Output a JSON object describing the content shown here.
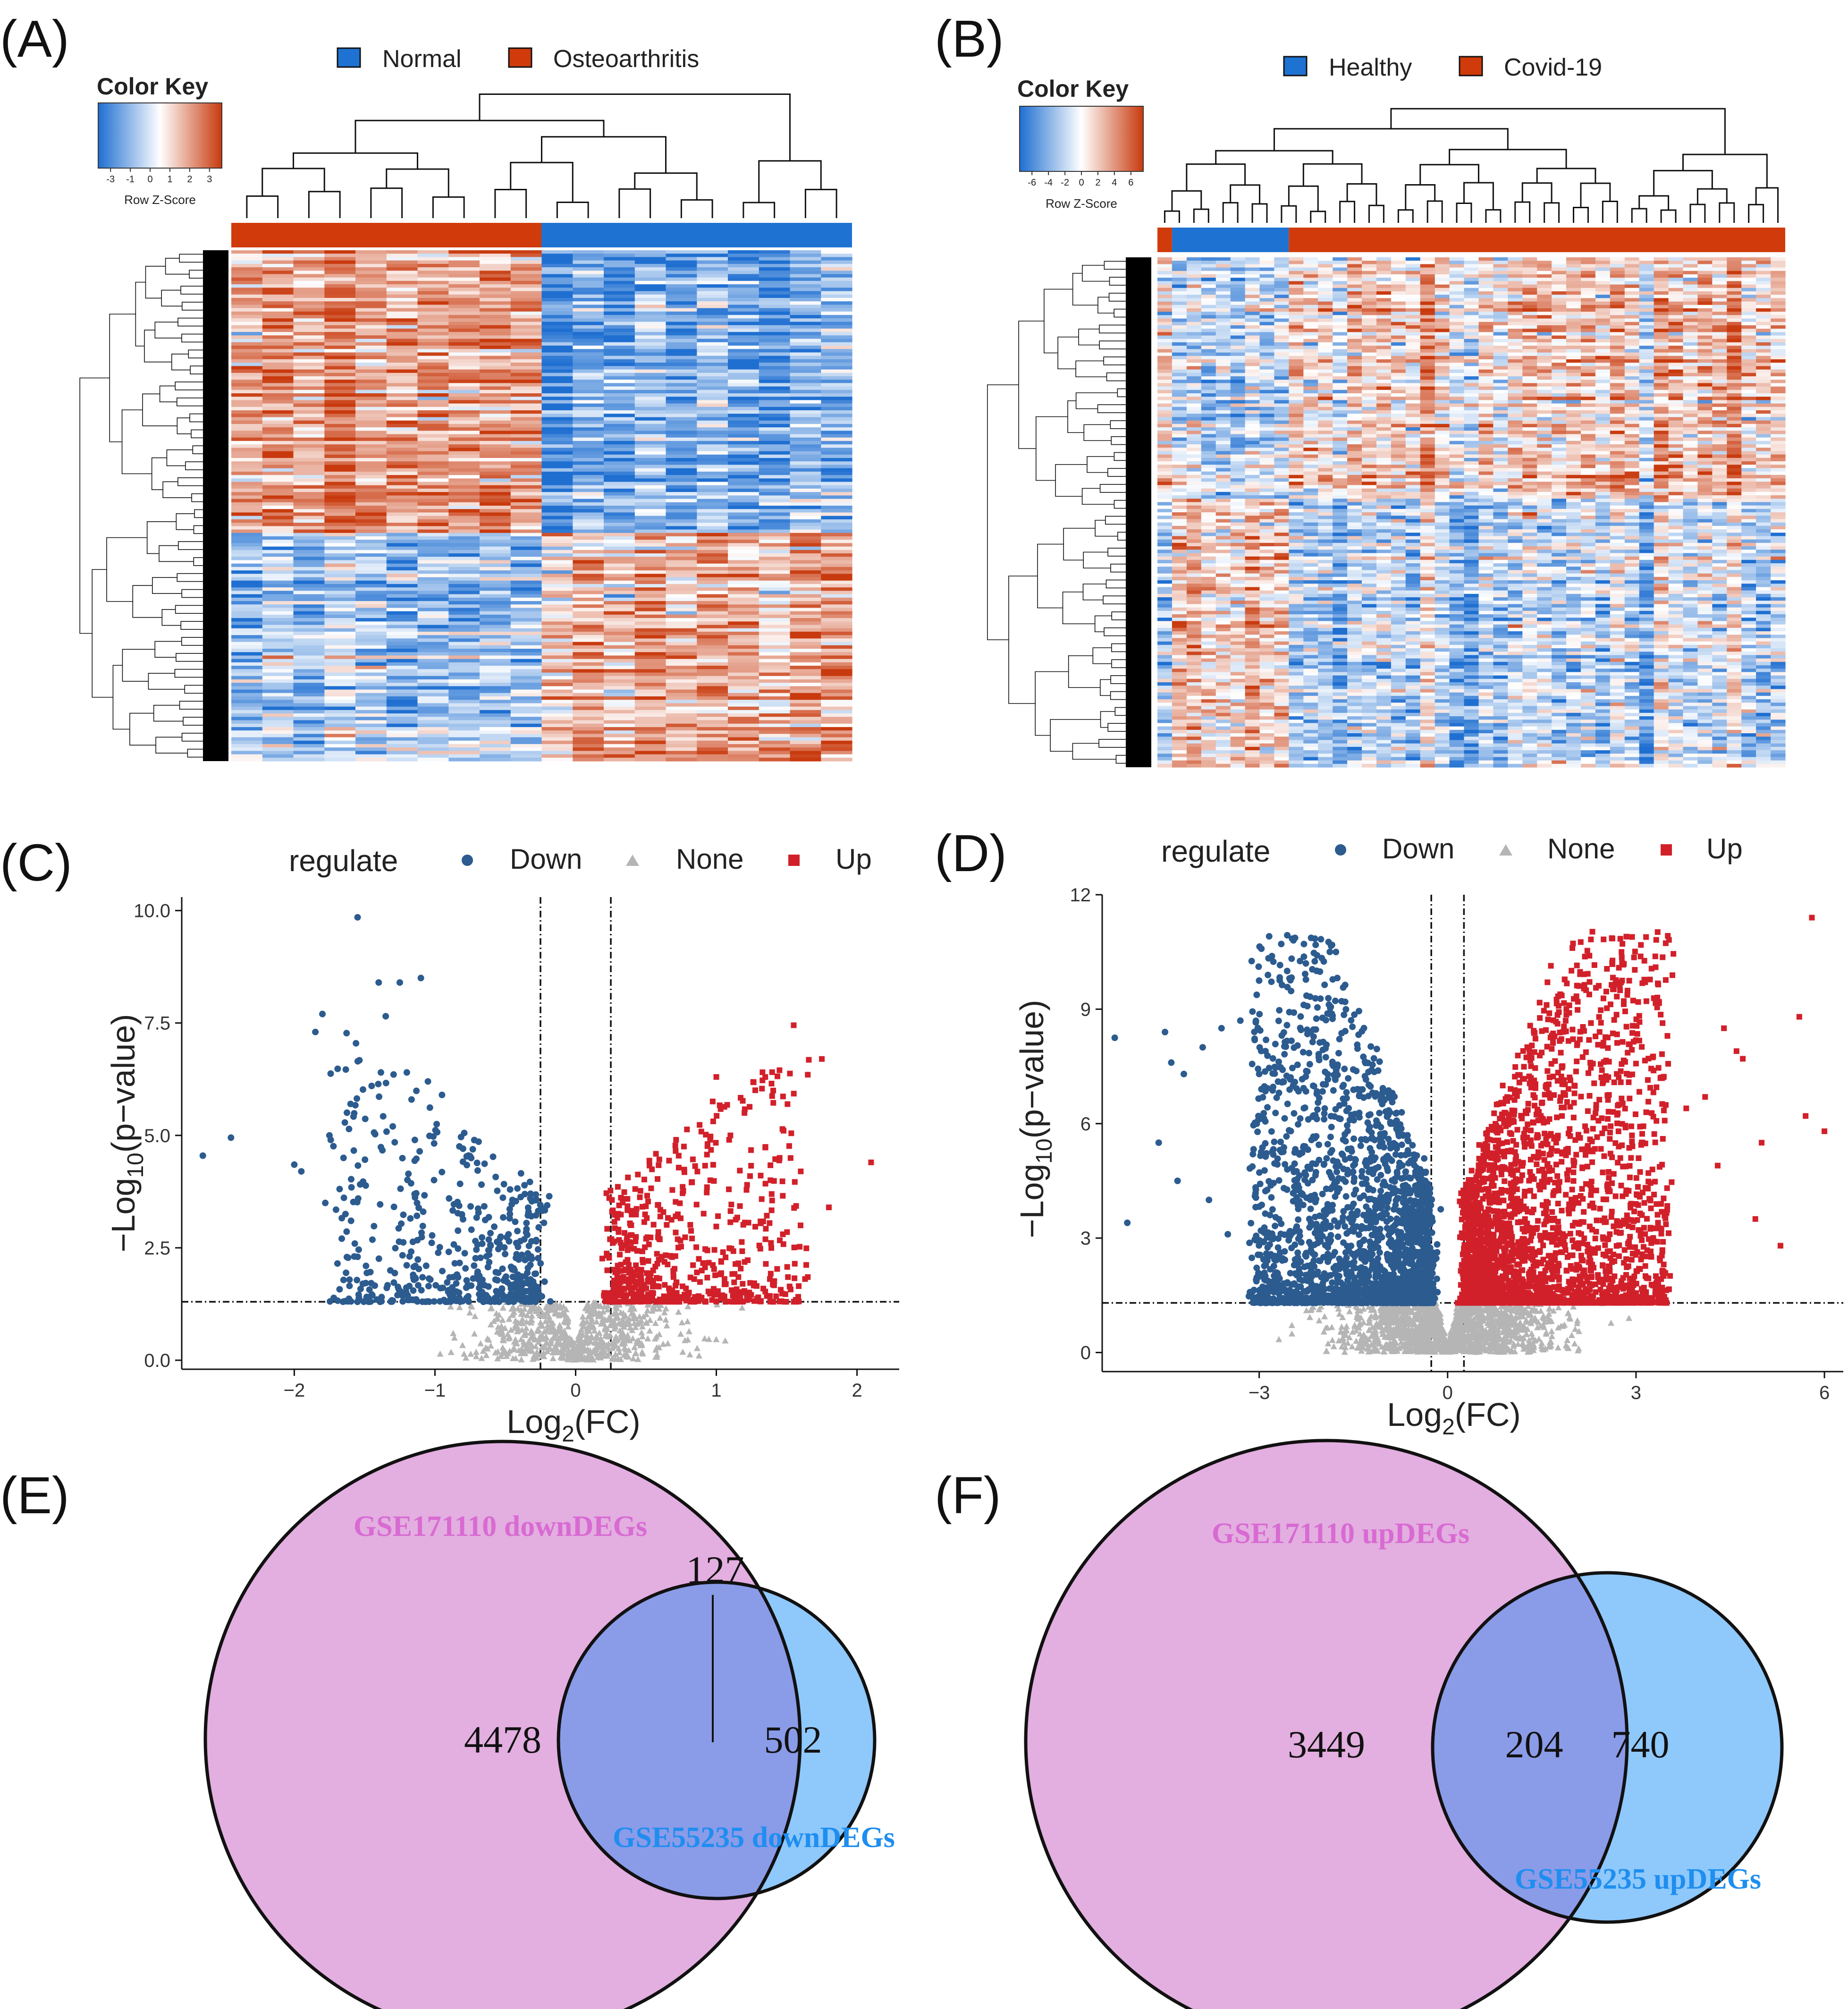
{
  "panels": {
    "A": {
      "label": "(A)"
    },
    "B": {
      "label": "(B)"
    },
    "C": {
      "label": "(C)"
    },
    "D": {
      "label": "(D)"
    },
    "E": {
      "label": "(E)"
    },
    "F": {
      "label": "(F)"
    }
  },
  "colors": {
    "heat_low": "#1f6fd1",
    "heat_mid": "#ffffff",
    "heat_high": "#c83a0e",
    "group_blue": "#1e73d2",
    "group_red": "#d13b0b",
    "down": "#2c5b8f",
    "none": "#b5b5b5",
    "up": "#d2202a",
    "venn_pink": "#e3aee0",
    "venn_blue": "#8fc8fb",
    "venn_overlap": "#8a9be8",
    "venn_pink_text": "#d86ad2",
    "venn_blue_text": "#1e8ef0"
  },
  "chart_data": [
    {
      "panel": "A",
      "type": "heatmap",
      "color_key": {
        "title": "Color Key",
        "sublabel": "Row Z-Score",
        "ticks": [
          "-3",
          "-1",
          "0",
          "1",
          "2",
          "3"
        ]
      },
      "legend": [
        {
          "name": "Normal",
          "color": "#1e73d2"
        },
        {
          "name": "Osteoarthritis",
          "color": "#d13b0b"
        }
      ],
      "groups": [
        {
          "name": "Osteoarthritis",
          "n": 10
        },
        {
          "name": "Normal",
          "n": 10
        }
      ],
      "row_clusters": 2
    },
    {
      "panel": "B",
      "type": "heatmap",
      "color_key": {
        "title": "Color Key",
        "sublabel": "Row Z-Score",
        "ticks": [
          "-6",
          "-4",
          "-2",
          "0",
          "2",
          "4",
          "6"
        ]
      },
      "legend": [
        {
          "name": "Healthy",
          "color": "#1e73d2"
        },
        {
          "name": "Covid-19",
          "color": "#d13b0b"
        }
      ],
      "groups": [
        {
          "name": "Covid-19",
          "n": 1
        },
        {
          "name": "Healthy",
          "n": 8
        },
        {
          "name": "Covid-19",
          "n": 34
        }
      ],
      "row_clusters": 2
    },
    {
      "panel": "C",
      "type": "scatter",
      "xlabel": "Log2(FC)",
      "ylabel": "-Log10(p-value)",
      "xlim": [
        -2.8,
        2.3
      ],
      "ylim": [
        -0.2,
        10.3
      ],
      "xticks": [
        -2,
        -1,
        0,
        1,
        2
      ],
      "yticks": [
        0.0,
        2.5,
        5.0,
        7.5,
        10.0
      ],
      "ytick_labels": [
        "0.0",
        "2.5",
        "5.0",
        "7.5",
        "10.0"
      ],
      "vlines": [
        -0.25,
        0.25
      ],
      "hline": 1.3,
      "legend_title": "regulate",
      "series": [
        {
          "name": "Down",
          "color": "#2c5b8f",
          "marker": "circle",
          "points": [
            [
              -2.65,
              4.55
            ],
            [
              -2.45,
              4.95
            ],
            [
              -2.0,
              4.35
            ],
            [
              -1.95,
              4.2
            ],
            [
              -1.8,
              7.7
            ],
            [
              -1.85,
              7.3
            ],
            [
              -1.55,
              9.85
            ],
            [
              -1.4,
              8.4
            ],
            [
              -1.25,
              8.4
            ],
            [
              -1.1,
              8.5
            ],
            [
              -1.35,
              7.65
            ],
            [
              -1.45,
              6.1
            ],
            [
              -1.6,
              5.7
            ],
            [
              -1.75,
              5.0
            ],
            [
              -1.65,
              4.5
            ],
            [
              -1.55,
              2.3
            ],
            [
              -1.3,
              5.2
            ],
            [
              -1.2,
              6.4
            ],
            [
              -1.05,
              6.2
            ],
            [
              -0.95,
              5.9
            ]
          ]
        },
        {
          "name": "None",
          "color": "#b5b5b5",
          "marker": "triangle"
        },
        {
          "name": "Up",
          "color": "#d2202a",
          "marker": "square",
          "points": [
            [
              1.55,
              7.45
            ],
            [
              1.75,
              6.7
            ],
            [
              1.65,
              6.35
            ],
            [
              2.1,
              4.4
            ],
            [
              1.8,
              3.4
            ],
            [
              1.6,
              4.2
            ],
            [
              1.65,
              1.85
            ],
            [
              1.2,
              5.5
            ],
            [
              1.0,
              6.3
            ],
            [
              1.45,
              4.5
            ],
            [
              1.1,
              5.0
            ]
          ]
        }
      ],
      "dense": {
        "down_n": 520,
        "up_n": 600,
        "none_n": 700,
        "down_x": [
          -1.7,
          -0.28
        ],
        "up_x": [
          0.28,
          1.6
        ],
        "fc_ymax_div": 0.12
      }
    },
    {
      "panel": "D",
      "type": "scatter",
      "xlabel": "Log2(FC)",
      "ylabel": "-Log10(p-value)",
      "xlim": [
        -5.5,
        6.3
      ],
      "ylim": [
        -0.5,
        12
      ],
      "xticks": [
        -3,
        0,
        3,
        6
      ],
      "yticks": [
        0,
        3,
        6,
        9,
        12
      ],
      "ytick_labels": [
        "0",
        "3",
        "6",
        "9",
        "12"
      ],
      "vlines": [
        -0.26,
        0.26
      ],
      "hline": 1.3,
      "legend_title": "regulate",
      "series": [
        {
          "name": "Down",
          "color": "#2c5b8f",
          "marker": "circle",
          "points": [
            [
              -5.3,
              8.25
            ],
            [
              -4.5,
              8.4
            ],
            [
              -4.4,
              7.6
            ],
            [
              -4.2,
              7.3
            ],
            [
              -3.9,
              8.0
            ],
            [
              -3.6,
              8.5
            ],
            [
              -3.3,
              8.7
            ],
            [
              -4.6,
              5.5
            ],
            [
              -5.1,
              3.4
            ],
            [
              -4.3,
              4.5
            ],
            [
              -3.8,
              4.0
            ],
            [
              -3.5,
              3.1
            ],
            [
              -2.9,
              7.9
            ],
            [
              -2.7,
              7.1
            ],
            [
              -3.1,
              5.2
            ]
          ]
        },
        {
          "name": "None",
          "color": "#b5b5b5",
          "marker": "triangle"
        },
        {
          "name": "Up",
          "color": "#d2202a",
          "marker": "square",
          "points": [
            [
              5.8,
              11.4
            ],
            [
              5.6,
              8.8
            ],
            [
              5.7,
              6.2
            ],
            [
              5.0,
              5.5
            ],
            [
              4.4,
              8.5
            ],
            [
              4.6,
              7.9
            ],
            [
              3.8,
              6.4
            ],
            [
              4.3,
              4.9
            ],
            [
              4.9,
              3.5
            ],
            [
              5.3,
              2.8
            ],
            [
              6.0,
              5.8
            ],
            [
              4.7,
              7.7
            ],
            [
              3.5,
              8.3
            ],
            [
              4.1,
              6.7
            ]
          ]
        }
      ],
      "dense": {
        "down_n": 2200,
        "up_n": 2600,
        "none_n": 1500,
        "down_x": [
          -3.1,
          -0.3
        ],
        "up_x": [
          0.3,
          3.5
        ],
        "fc_ymax_div": 0.09
      }
    },
    {
      "panel": "E",
      "type": "venn",
      "sets": [
        {
          "name": "GSE171110 downDEGs",
          "only": 4478
        },
        {
          "name": "GSE55235 downDEGs",
          "only": 502
        }
      ],
      "intersection": 127
    },
    {
      "panel": "F",
      "type": "venn",
      "sets": [
        {
          "name": "GSE171110 upDEGs",
          "only": 3449
        },
        {
          "name": "GSE55235 upDEGs",
          "only": 740
        }
      ],
      "intersection": 204
    }
  ]
}
